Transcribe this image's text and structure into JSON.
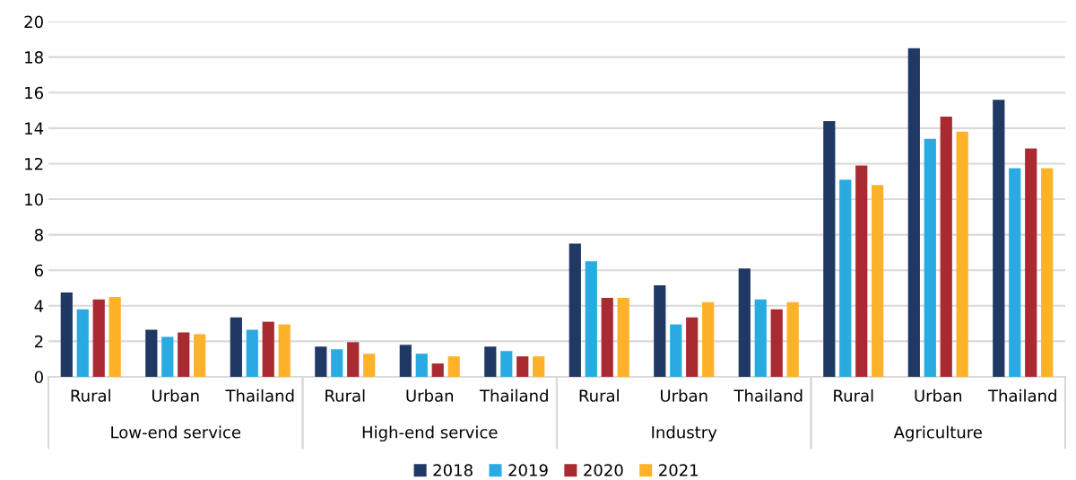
{
  "chart_data": {
    "type": "bar",
    "categories": [
      "Rural",
      "Urban",
      "Thailand",
      "Rural",
      "Urban",
      "Thailand",
      "Rural",
      "Urban",
      "Thailand",
      "Rural",
      "Urban",
      "Thailand"
    ],
    "annotations": [
      "Low-end service",
      "High-end service",
      "Industry",
      "Agriculture"
    ],
    "series": [
      {
        "name": "2018",
        "color": "#1f3864",
        "values": [
          4.75,
          2.65,
          3.35,
          1.7,
          1.8,
          1.7,
          7.5,
          5.15,
          6.1,
          14.4,
          18.5,
          15.6
        ]
      },
      {
        "name": "2019",
        "color": "#29abe2",
        "values": [
          3.8,
          2.25,
          2.65,
          1.55,
          1.3,
          1.45,
          6.5,
          2.95,
          4.35,
          11.1,
          13.4,
          11.75
        ]
      },
      {
        "name": "2020",
        "color": "#a92b31",
        "values": [
          4.35,
          2.5,
          3.1,
          1.95,
          0.75,
          1.15,
          4.45,
          3.35,
          3.8,
          11.9,
          14.65,
          12.85
        ]
      },
      {
        "name": "2021",
        "color": "#fdb22a",
        "values": [
          4.5,
          2.4,
          2.95,
          1.3,
          1.15,
          1.15,
          4.45,
          4.2,
          4.2,
          10.8,
          13.8,
          11.75
        ]
      }
    ],
    "ylim": [
      0,
      20
    ],
    "yticks": [
      0,
      2,
      4,
      6,
      8,
      10,
      12,
      14,
      16,
      18,
      20
    ],
    "grid": "y",
    "legend": "bottom"
  }
}
